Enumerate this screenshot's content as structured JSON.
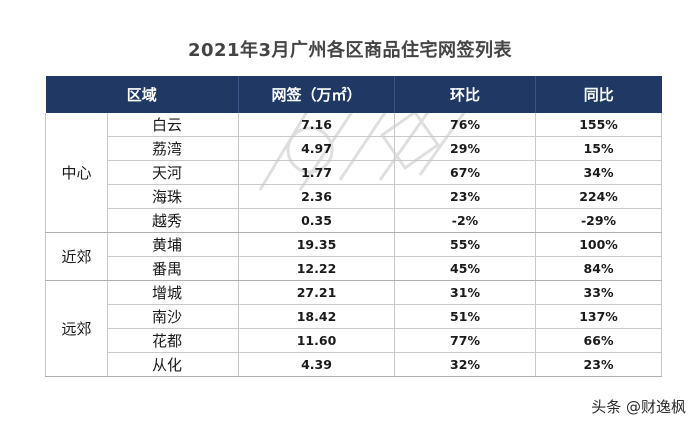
{
  "title": "2021年3月广州各区商品住宅网签列表",
  "headers": [
    "区域",
    "网签（万㎡）",
    "环比",
    "同比"
  ],
  "groups": [
    {
      "name": "中心",
      "rows": [
        {
          "district": "白云",
          "sign": "7.16",
          "mom": "76%",
          "yoy": "155%"
        },
        {
          "district": "荔湾",
          "sign": "4.97",
          "mom": "29%",
          "yoy": "15%"
        },
        {
          "district": "天河",
          "sign": "1.77",
          "mom": "67%",
          "yoy": "34%"
        },
        {
          "district": "海珠",
          "sign": "2.36",
          "mom": "23%",
          "yoy": "224%"
        },
        {
          "district": "越秀",
          "sign": "0.35",
          "mom": "-2%",
          "yoy": "-29%"
        }
      ]
    },
    {
      "name": "近郊",
      "rows": [
        {
          "district": "黄埔",
          "sign": "19.35",
          "mom": "55%",
          "yoy": "100%"
        },
        {
          "district": "番禺",
          "sign": "12.22",
          "mom": "45%",
          "yoy": "84%"
        }
      ]
    },
    {
      "name": "远郊",
      "rows": [
        {
          "district": "增城",
          "sign": "27.21",
          "mom": "31%",
          "yoy": "33%"
        },
        {
          "district": "南沙",
          "sign": "18.42",
          "mom": "51%",
          "yoy": "137%"
        },
        {
          "district": "花都",
          "sign": "11.60",
          "mom": "77%",
          "yoy": "66%"
        },
        {
          "district": "从化",
          "sign": "4.39",
          "mom": "32%",
          "yoy": "23%"
        }
      ]
    }
  ],
  "credit": "头条 @财逸枫",
  "colors": {
    "header_bg": "#1f3864",
    "header_text": "#ffffff",
    "title_text": "#444444"
  }
}
